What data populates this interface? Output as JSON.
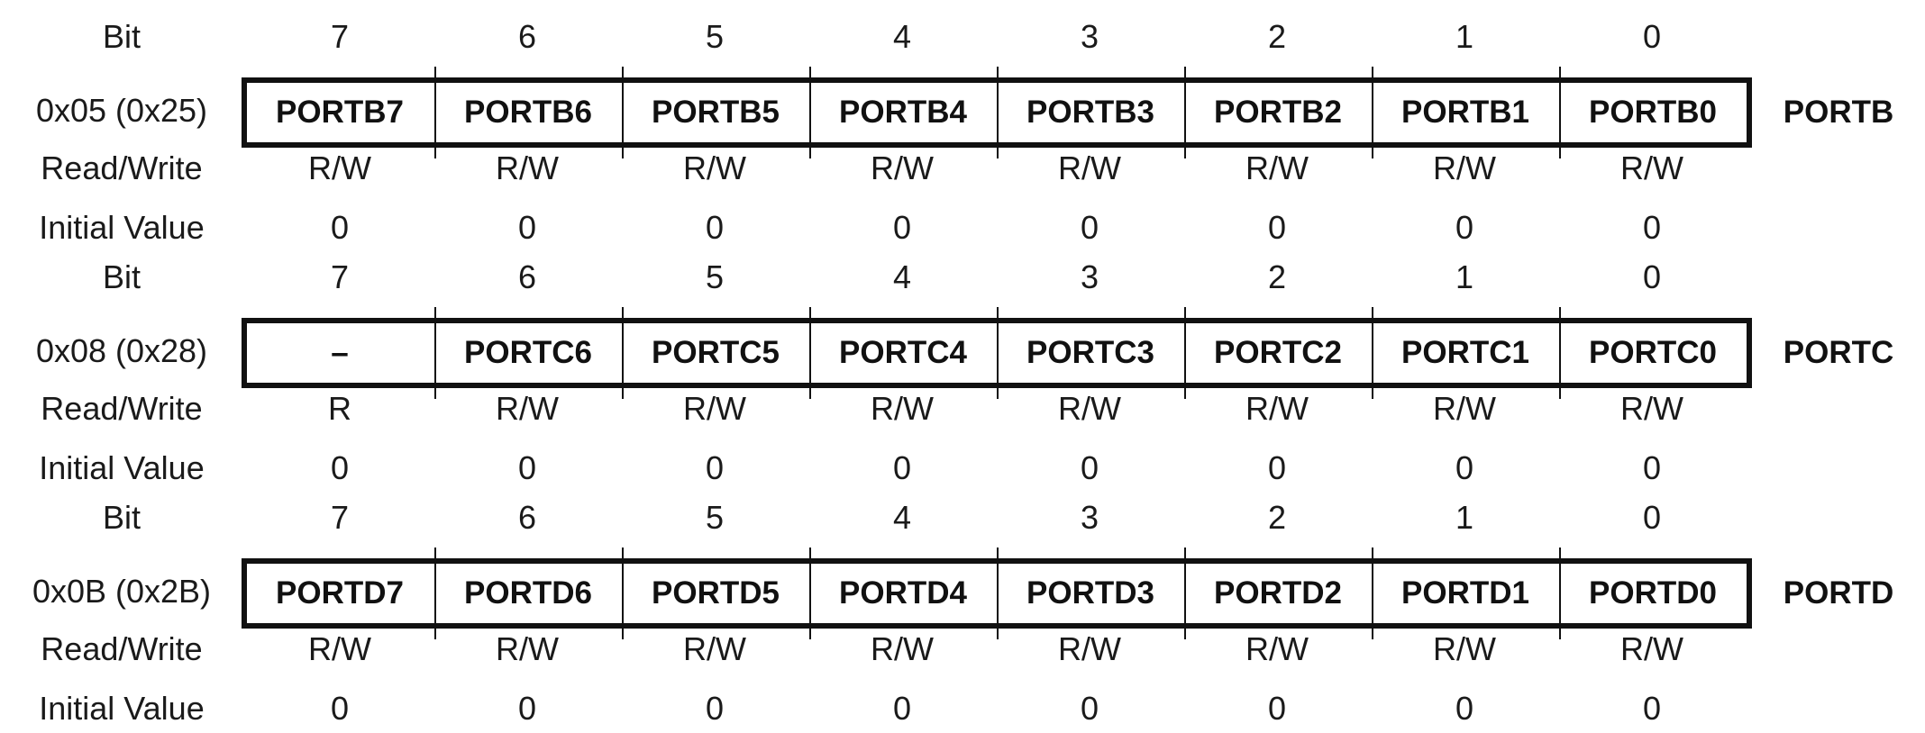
{
  "row_labels": {
    "bit": "Bit",
    "access": "Read/Write",
    "initial": "Initial Value"
  },
  "registers": [
    {
      "address": "0x05 (0x25)",
      "name": "PORTB",
      "bit_numbers": [
        "7",
        "6",
        "5",
        "4",
        "3",
        "2",
        "1",
        "0"
      ],
      "bit_names": [
        "PORTB7",
        "PORTB6",
        "PORTB5",
        "PORTB4",
        "PORTB3",
        "PORTB2",
        "PORTB1",
        "PORTB0"
      ],
      "access": [
        "R/W",
        "R/W",
        "R/W",
        "R/W",
        "R/W",
        "R/W",
        "R/W",
        "R/W"
      ],
      "initial_values": [
        "0",
        "0",
        "0",
        "0",
        "0",
        "0",
        "0",
        "0"
      ]
    },
    {
      "address": "0x08 (0x28)",
      "name": "PORTC",
      "bit_numbers": [
        "7",
        "6",
        "5",
        "4",
        "3",
        "2",
        "1",
        "0"
      ],
      "bit_names": [
        "–",
        "PORTC6",
        "PORTC5",
        "PORTC4",
        "PORTC3",
        "PORTC2",
        "PORTC1",
        "PORTC0"
      ],
      "access": [
        "R",
        "R/W",
        "R/W",
        "R/W",
        "R/W",
        "R/W",
        "R/W",
        "R/W"
      ],
      "initial_values": [
        "0",
        "0",
        "0",
        "0",
        "0",
        "0",
        "0",
        "0"
      ]
    },
    {
      "address": "0x0B (0x2B)",
      "name": "PORTD",
      "bit_numbers": [
        "7",
        "6",
        "5",
        "4",
        "3",
        "2",
        "1",
        "0"
      ],
      "bit_names": [
        "PORTD7",
        "PORTD6",
        "PORTD5",
        "PORTD4",
        "PORTD3",
        "PORTD2",
        "PORTD1",
        "PORTD0"
      ],
      "access": [
        "R/W",
        "R/W",
        "R/W",
        "R/W",
        "R/W",
        "R/W",
        "R/W",
        "R/W"
      ],
      "initial_values": [
        "0",
        "0",
        "0",
        "0",
        "0",
        "0",
        "0",
        "0"
      ]
    }
  ]
}
